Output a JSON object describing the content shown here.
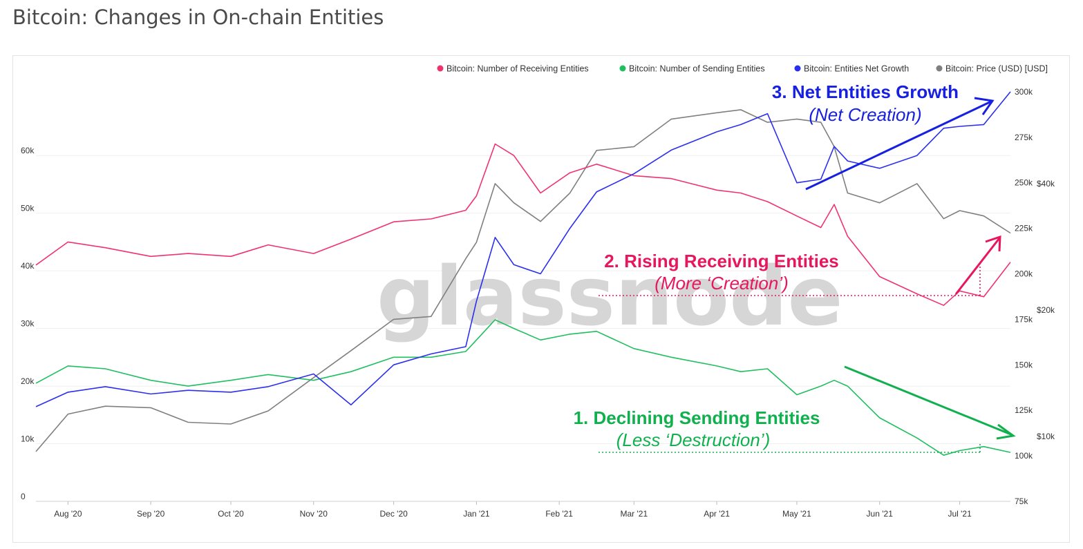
{
  "page": {
    "title": "Bitcoin: Changes in On-chain Entities"
  },
  "watermark": "glassnode",
  "colors": {
    "receiving": "#f0326e",
    "sending": "#1fbf5f",
    "net": "#2a2ef0",
    "price": "#7f7f7f",
    "ann_blue": "#1720e0",
    "ann_red": "#e8175d",
    "ann_green": "#11b04e"
  },
  "legend": [
    {
      "label": "Bitcoin: Number of Receiving Entities",
      "color": "#f0326e"
    },
    {
      "label": "Bitcoin: Number of Sending Entities",
      "color": "#1fbf5f"
    },
    {
      "label": "Bitcoin: Entities Net Growth",
      "color": "#2a2ef0"
    },
    {
      "label": "Bitcoin: Price (USD) [USD]",
      "color": "#7f7f7f"
    }
  ],
  "annotations": {
    "net": {
      "main": "3. Net Entities Growth",
      "sub": "(Net Creation)"
    },
    "receiving": {
      "main": "2. Rising Receiving Entities",
      "sub": "(More ‘Creation’)"
    },
    "sending": {
      "main": "1. Declining Sending Entities",
      "sub": "(Less ‘Destruction’)"
    }
  },
  "chart_data": {
    "type": "line",
    "title": "Bitcoin: Changes in On-chain Entities",
    "x_ticks": [
      "Aug '20",
      "Sep '20",
      "Oct '20",
      "Nov '20",
      "Dec '20",
      "Jan '21",
      "Feb '21",
      "Mar '21",
      "Apr '21",
      "May '21",
      "Jun '21",
      "Jul '21"
    ],
    "y_left": {
      "ticks": [
        "0",
        "10k",
        "20k",
        "30k",
        "40k",
        "50k",
        "60k"
      ],
      "range": [
        0,
        75000
      ]
    },
    "y_right_net": {
      "ticks": [
        "75k",
        "100k",
        "125k",
        "150k",
        "175k",
        "200k",
        "225k",
        "250k",
        "275k",
        "300k"
      ],
      "range": [
        75000,
        312500
      ]
    },
    "y_right_price": {
      "ticks": [
        "$10k",
        "$20k",
        "$40k"
      ],
      "scale": "log"
    },
    "legend_position": "top-right",
    "series": [
      {
        "name": "Bitcoin: Number of Receiving Entities",
        "axis": "left",
        "points": [
          [
            "2020-07-20",
            41000
          ],
          [
            "2020-08-01",
            45000
          ],
          [
            "2020-08-15",
            44000
          ],
          [
            "2020-09-01",
            42500
          ],
          [
            "2020-09-15",
            43000
          ],
          [
            "2020-10-01",
            42500
          ],
          [
            "2020-10-15",
            44500
          ],
          [
            "2020-11-01",
            43000
          ],
          [
            "2020-11-15",
            45500
          ],
          [
            "2020-12-01",
            48500
          ],
          [
            "2020-12-15",
            49000
          ],
          [
            "2020-12-28",
            50500
          ],
          [
            "2021-01-01",
            53000
          ],
          [
            "2021-01-08",
            62000
          ],
          [
            "2021-01-15",
            60000
          ],
          [
            "2021-01-25",
            53500
          ],
          [
            "2021-02-05",
            57000
          ],
          [
            "2021-02-15",
            58500
          ],
          [
            "2021-03-01",
            56500
          ],
          [
            "2021-03-15",
            56000
          ],
          [
            "2021-04-01",
            54000
          ],
          [
            "2021-04-10",
            53500
          ],
          [
            "2021-04-20",
            52000
          ],
          [
            "2021-05-01",
            49500
          ],
          [
            "2021-05-10",
            47500
          ],
          [
            "2021-05-15",
            51500
          ],
          [
            "2021-05-20",
            46000
          ],
          [
            "2021-06-01",
            39000
          ],
          [
            "2021-06-15",
            36000
          ],
          [
            "2021-06-25",
            34000
          ],
          [
            "2021-07-01",
            36500
          ],
          [
            "2021-07-10",
            35500
          ],
          [
            "2021-07-20",
            41500
          ]
        ]
      },
      {
        "name": "Bitcoin: Number of Sending Entities",
        "axis": "left",
        "points": [
          [
            "2020-07-20",
            20500
          ],
          [
            "2020-08-01",
            23500
          ],
          [
            "2020-08-15",
            23000
          ],
          [
            "2020-09-01",
            21000
          ],
          [
            "2020-09-15",
            20000
          ],
          [
            "2020-10-01",
            21000
          ],
          [
            "2020-10-15",
            22000
          ],
          [
            "2020-11-01",
            21000
          ],
          [
            "2020-11-15",
            22500
          ],
          [
            "2020-12-01",
            25000
          ],
          [
            "2020-12-15",
            25000
          ],
          [
            "2020-12-28",
            26000
          ],
          [
            "2021-01-01",
            28000
          ],
          [
            "2021-01-08",
            31500
          ],
          [
            "2021-01-15",
            30000
          ],
          [
            "2021-01-25",
            28000
          ],
          [
            "2021-02-05",
            29000
          ],
          [
            "2021-02-15",
            29500
          ],
          [
            "2021-03-01",
            26500
          ],
          [
            "2021-03-15",
            25000
          ],
          [
            "2021-04-01",
            23500
          ],
          [
            "2021-04-10",
            22500
          ],
          [
            "2021-04-20",
            23000
          ],
          [
            "2021-05-01",
            18500
          ],
          [
            "2021-05-10",
            20000
          ],
          [
            "2021-05-15",
            21000
          ],
          [
            "2021-05-20",
            20000
          ],
          [
            "2021-06-01",
            14500
          ],
          [
            "2021-06-15",
            11000
          ],
          [
            "2021-06-25",
            8000
          ],
          [
            "2021-07-01",
            8800
          ],
          [
            "2021-07-10",
            9500
          ],
          [
            "2021-07-20",
            8500
          ]
        ]
      },
      {
        "name": "Bitcoin: Entities Net Growth",
        "axis": "right",
        "points": [
          [
            "2020-07-20",
            127000
          ],
          [
            "2020-08-01",
            135000
          ],
          [
            "2020-08-15",
            138000
          ],
          [
            "2020-09-01",
            134000
          ],
          [
            "2020-09-15",
            136000
          ],
          [
            "2020-10-01",
            135000
          ],
          [
            "2020-10-15",
            138000
          ],
          [
            "2020-11-01",
            145000
          ],
          [
            "2020-11-15",
            128000
          ],
          [
            "2020-12-01",
            150000
          ],
          [
            "2020-12-15",
            156000
          ],
          [
            "2020-12-28",
            160000
          ],
          [
            "2021-01-01",
            185000
          ],
          [
            "2021-01-08",
            220000
          ],
          [
            "2021-01-15",
            205000
          ],
          [
            "2021-01-25",
            200000
          ],
          [
            "2021-02-05",
            225000
          ],
          [
            "2021-02-15",
            245000
          ],
          [
            "2021-03-01",
            255000
          ],
          [
            "2021-03-15",
            268000
          ],
          [
            "2021-04-01",
            278000
          ],
          [
            "2021-04-10",
            282000
          ],
          [
            "2021-04-20",
            288000
          ],
          [
            "2021-05-01",
            250000
          ],
          [
            "2021-05-10",
            252000
          ],
          [
            "2021-05-15",
            270000
          ],
          [
            "2021-05-20",
            262000
          ],
          [
            "2021-06-01",
            258000
          ],
          [
            "2021-06-15",
            265000
          ],
          [
            "2021-06-25",
            280000
          ],
          [
            "2021-07-01",
            281000
          ],
          [
            "2021-07-10",
            282000
          ],
          [
            "2021-07-20",
            300000
          ]
        ]
      },
      {
        "name": "Bitcoin: Price (USD) [USD]",
        "axis": "right",
        "points": [
          [
            "2020-07-20",
            9200
          ],
          [
            "2020-08-01",
            11300
          ],
          [
            "2020-08-15",
            11800
          ],
          [
            "2020-09-01",
            11700
          ],
          [
            "2020-09-15",
            10800
          ],
          [
            "2020-10-01",
            10700
          ],
          [
            "2020-10-15",
            11500
          ],
          [
            "2020-11-01",
            13800
          ],
          [
            "2020-11-15",
            16000
          ],
          [
            "2020-12-01",
            19000
          ],
          [
            "2020-12-15",
            19300
          ],
          [
            "2020-12-28",
            26500
          ],
          [
            "2021-01-01",
            29000
          ],
          [
            "2021-01-08",
            40000
          ],
          [
            "2021-01-15",
            36000
          ],
          [
            "2021-01-25",
            32500
          ],
          [
            "2021-02-05",
            38000
          ],
          [
            "2021-02-15",
            48000
          ],
          [
            "2021-03-01",
            49000
          ],
          [
            "2021-03-15",
            57000
          ],
          [
            "2021-04-01",
            59000
          ],
          [
            "2021-04-10",
            60000
          ],
          [
            "2021-04-20",
            56000
          ],
          [
            "2021-05-01",
            57000
          ],
          [
            "2021-05-10",
            56000
          ],
          [
            "2021-05-15",
            49000
          ],
          [
            "2021-05-20",
            38000
          ],
          [
            "2021-06-01",
            36000
          ],
          [
            "2021-06-15",
            40000
          ],
          [
            "2021-06-25",
            33000
          ],
          [
            "2021-07-01",
            34500
          ],
          [
            "2021-07-10",
            33500
          ],
          [
            "2021-07-20",
            30500
          ]
        ]
      }
    ]
  }
}
